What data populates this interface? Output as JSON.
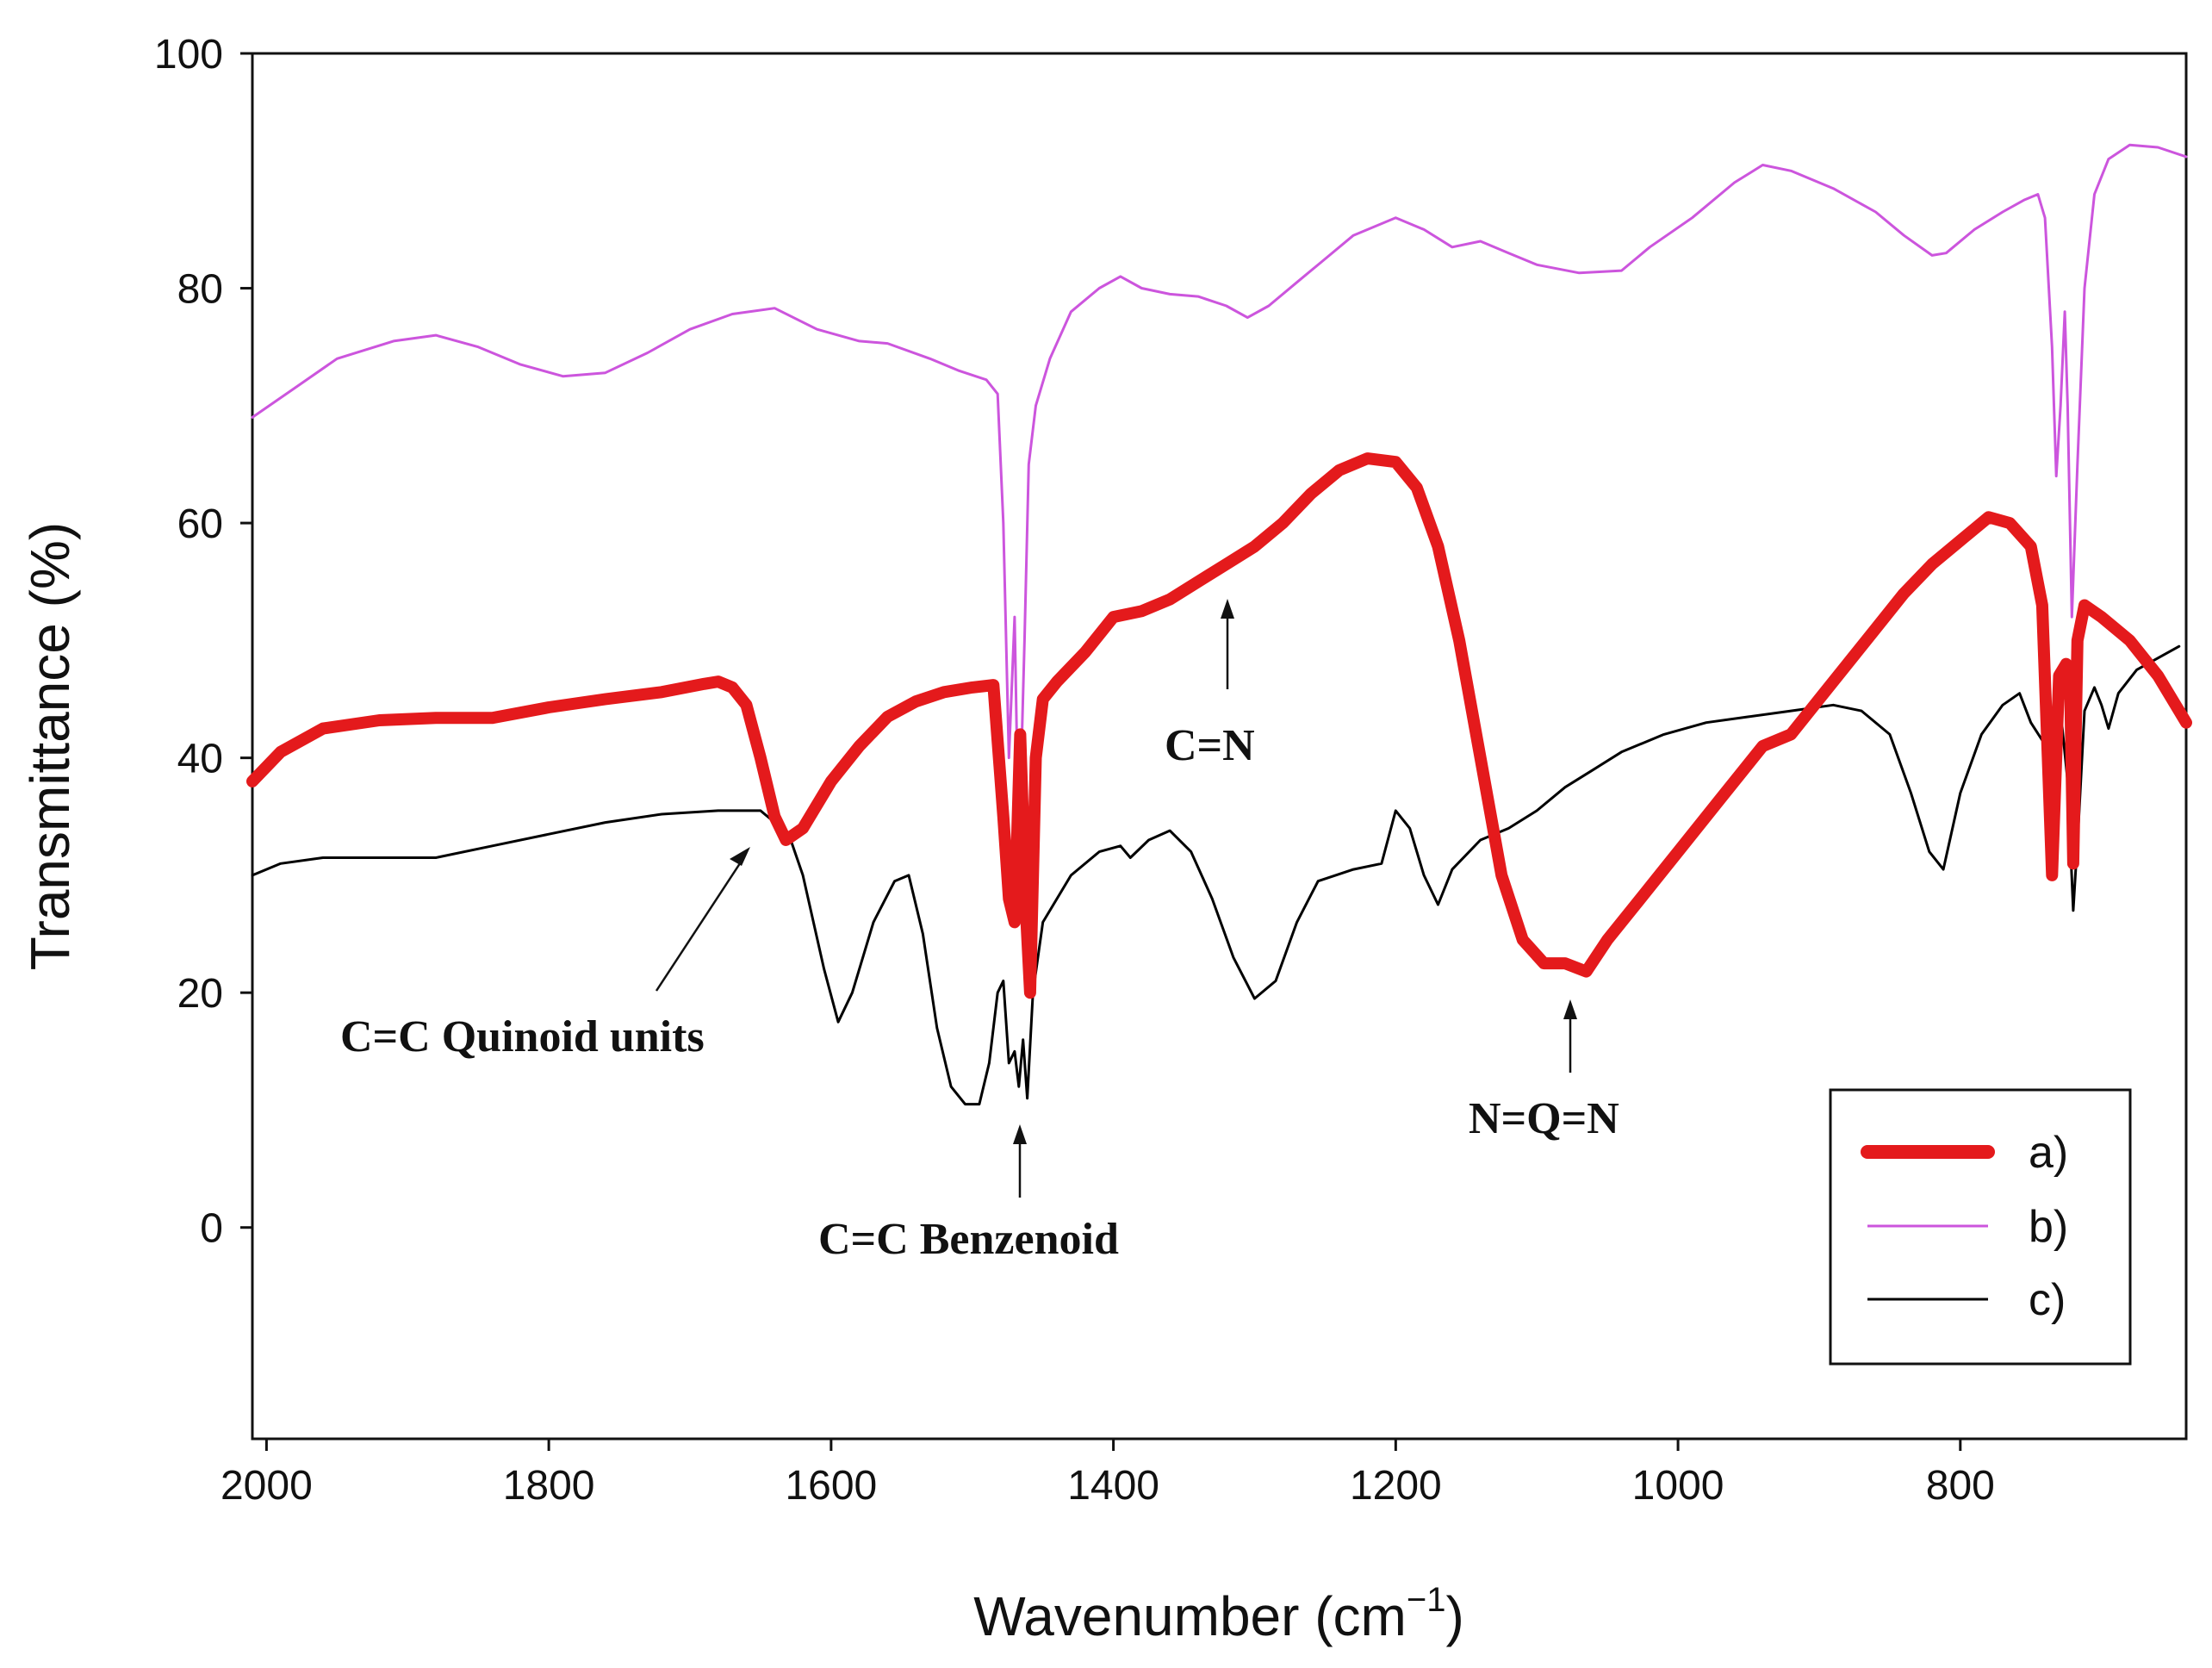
{
  "chart_data": {
    "type": "line",
    "xlabel": "Wavenumber (cm",
    "xlabel_sup": "−1",
    "xlabel_close": ")",
    "ylabel": "Transmittance (%)",
    "xlim": [
      2010,
      640
    ],
    "ylim": [
      -18,
      100
    ],
    "x_ticks": [
      2000,
      1800,
      1600,
      1400,
      1200,
      1000,
      800
    ],
    "y_ticks": [
      0,
      20,
      40,
      60,
      80,
      100
    ],
    "grid": false,
    "legend_position": "bottom-right",
    "series": [
      {
        "name": "a)",
        "color": "#e41a1c",
        "width": "thick",
        "points": [
          [
            2010,
            38
          ],
          [
            1990,
            40.5
          ],
          [
            1960,
            42.5
          ],
          [
            1920,
            43.2
          ],
          [
            1880,
            43.4
          ],
          [
            1840,
            43.4
          ],
          [
            1800,
            44.3
          ],
          [
            1760,
            45
          ],
          [
            1720,
            45.6
          ],
          [
            1690,
            46.3
          ],
          [
            1680,
            46.5
          ],
          [
            1670,
            46
          ],
          [
            1660,
            44.5
          ],
          [
            1650,
            40
          ],
          [
            1640,
            35
          ],
          [
            1632,
            33
          ],
          [
            1620,
            34
          ],
          [
            1600,
            38
          ],
          [
            1580,
            41
          ],
          [
            1560,
            43.5
          ],
          [
            1540,
            44.8
          ],
          [
            1520,
            45.6
          ],
          [
            1500,
            46
          ],
          [
            1485,
            46.2
          ],
          [
            1478,
            35
          ],
          [
            1474,
            28
          ],
          [
            1470,
            26
          ],
          [
            1466,
            42
          ],
          [
            1462,
            27
          ],
          [
            1459,
            20
          ],
          [
            1455,
            40
          ],
          [
            1450,
            45
          ],
          [
            1440,
            46.5
          ],
          [
            1420,
            49
          ],
          [
            1400,
            52
          ],
          [
            1380,
            52.5
          ],
          [
            1360,
            53.5
          ],
          [
            1340,
            55
          ],
          [
            1320,
            56.5
          ],
          [
            1300,
            58
          ],
          [
            1280,
            60
          ],
          [
            1260,
            62.5
          ],
          [
            1240,
            64.5
          ],
          [
            1220,
            65.5
          ],
          [
            1200,
            65.2
          ],
          [
            1185,
            63
          ],
          [
            1170,
            58
          ],
          [
            1155,
            50
          ],
          [
            1140,
            40
          ],
          [
            1125,
            30
          ],
          [
            1110,
            24.5
          ],
          [
            1095,
            22.5
          ],
          [
            1080,
            22.5
          ],
          [
            1065,
            21.8
          ],
          [
            1050,
            24.5
          ],
          [
            1030,
            27.5
          ],
          [
            1000,
            32
          ],
          [
            970,
            36.5
          ],
          [
            940,
            41
          ],
          [
            920,
            42
          ],
          [
            900,
            45
          ],
          [
            880,
            48
          ],
          [
            860,
            51
          ],
          [
            840,
            54
          ],
          [
            820,
            56.5
          ],
          [
            800,
            58.5
          ],
          [
            780,
            60.5
          ],
          [
            765,
            60
          ],
          [
            750,
            58
          ],
          [
            742,
            53
          ],
          [
            738,
            40
          ],
          [
            735,
            30
          ],
          [
            730,
            47
          ],
          [
            725,
            48
          ],
          [
            722,
            45
          ],
          [
            720,
            31
          ],
          [
            717,
            50
          ],
          [
            712,
            53
          ],
          [
            700,
            52
          ],
          [
            680,
            50
          ],
          [
            660,
            47
          ],
          [
            640,
            43
          ]
        ]
      },
      {
        "name": "b)",
        "color": "#cc55dd",
        "width": "thin",
        "points": [
          [
            2010,
            69
          ],
          [
            1980,
            71.5
          ],
          [
            1950,
            74
          ],
          [
            1910,
            75.5
          ],
          [
            1880,
            76
          ],
          [
            1850,
            75
          ],
          [
            1820,
            73.5
          ],
          [
            1790,
            72.5
          ],
          [
            1760,
            72.8
          ],
          [
            1730,
            74.5
          ],
          [
            1700,
            76.5
          ],
          [
            1670,
            77.8
          ],
          [
            1640,
            78.3
          ],
          [
            1610,
            76.5
          ],
          [
            1580,
            75.5
          ],
          [
            1560,
            75.3
          ],
          [
            1530,
            74
          ],
          [
            1510,
            73
          ],
          [
            1490,
            72.2
          ],
          [
            1482,
            71
          ],
          [
            1478,
            60
          ],
          [
            1474,
            40
          ],
          [
            1470,
            52
          ],
          [
            1467,
            32
          ],
          [
            1463,
            50
          ],
          [
            1460,
            65
          ],
          [
            1455,
            70
          ],
          [
            1445,
            74
          ],
          [
            1430,
            78
          ],
          [
            1410,
            80
          ],
          [
            1395,
            81
          ],
          [
            1380,
            80
          ],
          [
            1360,
            79.5
          ],
          [
            1340,
            79.3
          ],
          [
            1320,
            78.5
          ],
          [
            1305,
            77.5
          ],
          [
            1290,
            78.5
          ],
          [
            1270,
            80.5
          ],
          [
            1250,
            82.5
          ],
          [
            1230,
            84.5
          ],
          [
            1200,
            86
          ],
          [
            1180,
            85
          ],
          [
            1160,
            83.5
          ],
          [
            1140,
            84
          ],
          [
            1120,
            83
          ],
          [
            1100,
            82
          ],
          [
            1070,
            81.3
          ],
          [
            1040,
            81.5
          ],
          [
            1020,
            83.5
          ],
          [
            990,
            86
          ],
          [
            960,
            89
          ],
          [
            940,
            90.5
          ],
          [
            920,
            90
          ],
          [
            890,
            88.5
          ],
          [
            860,
            86.5
          ],
          [
            840,
            84.5
          ],
          [
            820,
            82.8
          ],
          [
            810,
            83
          ],
          [
            790,
            85
          ],
          [
            770,
            86.5
          ],
          [
            755,
            87.5
          ],
          [
            745,
            88
          ],
          [
            740,
            86
          ],
          [
            735,
            75
          ],
          [
            732,
            64
          ],
          [
            729,
            70
          ],
          [
            726,
            78
          ],
          [
            724,
            70
          ],
          [
            721,
            52
          ],
          [
            717,
            65
          ],
          [
            712,
            80
          ],
          [
            705,
            88
          ],
          [
            695,
            91
          ],
          [
            680,
            92.2
          ],
          [
            660,
            92
          ],
          [
            640,
            91.2
          ]
        ]
      },
      {
        "name": "c)",
        "color": "#000000",
        "width": "thin",
        "points": [
          [
            2010,
            30
          ],
          [
            1990,
            31
          ],
          [
            1960,
            31.5
          ],
          [
            1920,
            31.5
          ],
          [
            1880,
            31.5
          ],
          [
            1840,
            32.5
          ],
          [
            1800,
            33.5
          ],
          [
            1760,
            34.5
          ],
          [
            1720,
            35.2
          ],
          [
            1680,
            35.5
          ],
          [
            1650,
            35.5
          ],
          [
            1630,
            33.5
          ],
          [
            1620,
            30
          ],
          [
            1605,
            22
          ],
          [
            1595,
            17.5
          ],
          [
            1585,
            20
          ],
          [
            1570,
            26
          ],
          [
            1555,
            29.5
          ],
          [
            1545,
            30
          ],
          [
            1535,
            25
          ],
          [
            1525,
            17
          ],
          [
            1515,
            12
          ],
          [
            1505,
            10.5
          ],
          [
            1495,
            10.5
          ],
          [
            1488,
            14
          ],
          [
            1482,
            20
          ],
          [
            1478,
            21
          ],
          [
            1474,
            14
          ],
          [
            1470,
            15
          ],
          [
            1467,
            12
          ],
          [
            1464,
            16
          ],
          [
            1461,
            11
          ],
          [
            1457,
            20
          ],
          [
            1450,
            26
          ],
          [
            1430,
            30
          ],
          [
            1410,
            32
          ],
          [
            1395,
            32.5
          ],
          [
            1388,
            31.5
          ],
          [
            1375,
            33
          ],
          [
            1360,
            33.8
          ],
          [
            1345,
            32
          ],
          [
            1330,
            28
          ],
          [
            1315,
            23
          ],
          [
            1300,
            19.5
          ],
          [
            1285,
            21
          ],
          [
            1270,
            26
          ],
          [
            1255,
            29.5
          ],
          [
            1230,
            30.5
          ],
          [
            1210,
            31
          ],
          [
            1200,
            35.5
          ],
          [
            1190,
            34
          ],
          [
            1180,
            30
          ],
          [
            1170,
            27.5
          ],
          [
            1160,
            30.5
          ],
          [
            1140,
            33
          ],
          [
            1120,
            34
          ],
          [
            1100,
            35.5
          ],
          [
            1080,
            37.5
          ],
          [
            1060,
            39
          ],
          [
            1040,
            40.5
          ],
          [
            1010,
            42
          ],
          [
            980,
            43
          ],
          [
            950,
            43.5
          ],
          [
            920,
            44
          ],
          [
            890,
            44.5
          ],
          [
            870,
            44
          ],
          [
            850,
            42
          ],
          [
            835,
            37
          ],
          [
            822,
            32
          ],
          [
            812,
            30.5
          ],
          [
            800,
            37
          ],
          [
            785,
            42
          ],
          [
            770,
            44.5
          ],
          [
            758,
            45.5
          ],
          [
            750,
            43
          ],
          [
            742,
            41.5
          ],
          [
            738,
            45
          ],
          [
            733,
            34
          ],
          [
            729,
            44
          ],
          [
            724,
            38
          ],
          [
            720,
            27
          ],
          [
            716,
            35
          ],
          [
            712,
            44
          ],
          [
            705,
            46
          ],
          [
            700,
            44.5
          ],
          [
            695,
            42.5
          ],
          [
            688,
            45.5
          ],
          [
            675,
            47.5
          ],
          [
            660,
            48.5
          ],
          [
            645,
            49.5
          ]
        ]
      }
    ],
    "annotations": [
      {
        "text": "C=C Quinoid units",
        "arrow_to": [
          1640,
          33
        ]
      },
      {
        "text": "C=C Benzenoid",
        "arrow_to": [
          1462,
          9
        ]
      },
      {
        "text": "C=N",
        "arrow_to": [
          1320,
          53
        ]
      },
      {
        "text": "N=Q=N",
        "arrow_to": [
          1080,
          20
        ]
      }
    ]
  }
}
